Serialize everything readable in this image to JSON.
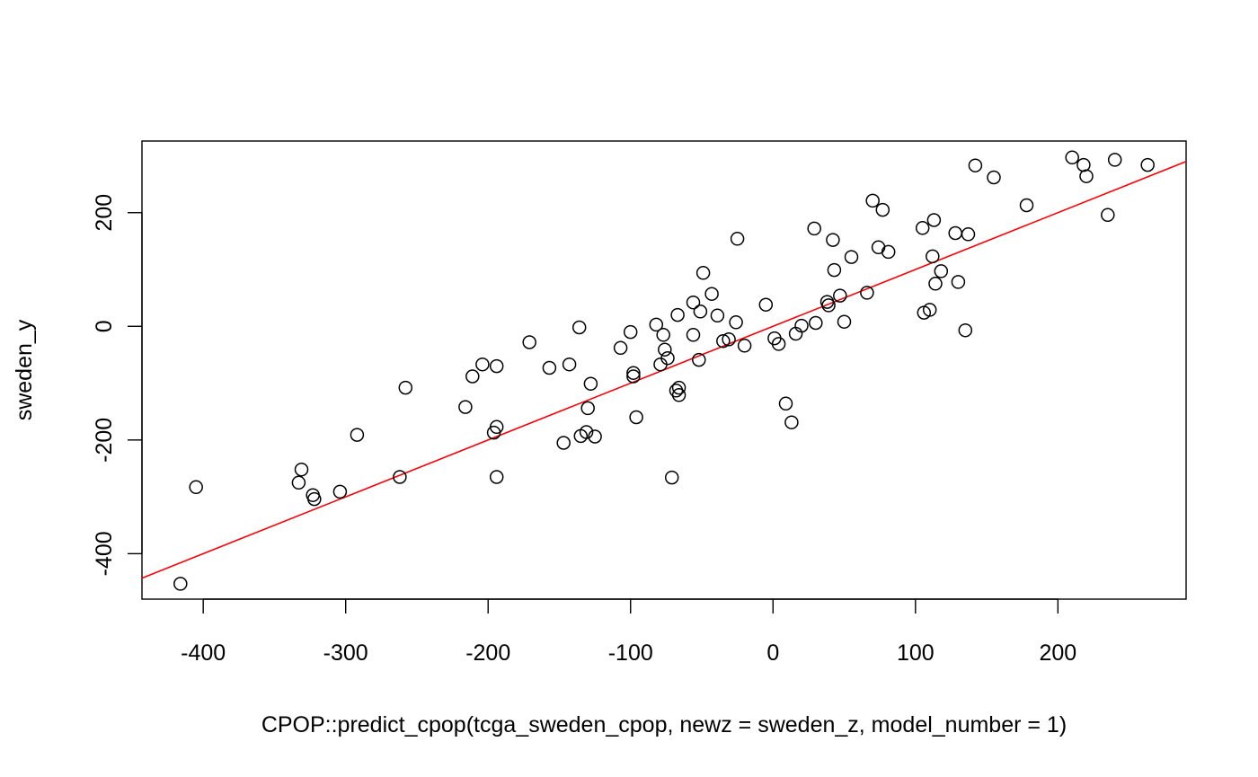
{
  "chart_data": {
    "type": "scatter",
    "xlabel": "CPOP::predict_cpop(tcga_sweden_cpop, newz = sweden_z, model_number = 1)",
    "ylabel": "sweden_y",
    "xlim": [
      -443,
      290
    ],
    "ylim": [
      -480,
      326
    ],
    "x_ticks": [
      -400,
      -300,
      -200,
      -100,
      0,
      100,
      200
    ],
    "y_ticks": [
      -400,
      -200,
      0,
      200
    ],
    "grid": false,
    "legend": "none",
    "point_style": "open-circle",
    "colors": {
      "points": "#000000",
      "reference_line": "#ff0000"
    },
    "reference_line": {
      "slope": 1,
      "intercept": 0
    },
    "points": [
      [
        -416,
        -453
      ],
      [
        -405,
        -283
      ],
      [
        -333,
        -275
      ],
      [
        -331,
        -252
      ],
      [
        -323,
        -297
      ],
      [
        -322,
        -304
      ],
      [
        -304,
        -291
      ],
      [
        -292,
        -191
      ],
      [
        -262,
        -265
      ],
      [
        -258,
        -108
      ],
      [
        -216,
        -142
      ],
      [
        -211,
        -88
      ],
      [
        -204,
        -67
      ],
      [
        -196,
        -187
      ],
      [
        -194,
        -70
      ],
      [
        -194,
        -177
      ],
      [
        -194,
        -265
      ],
      [
        -171,
        -28
      ],
      [
        -157,
        -73
      ],
      [
        -147,
        -205
      ],
      [
        -143,
        -67
      ],
      [
        -136,
        -2
      ],
      [
        -135,
        -193
      ],
      [
        -131,
        -186
      ],
      [
        -130,
        -144
      ],
      [
        -128,
        -101
      ],
      [
        -125,
        -194
      ],
      [
        -107,
        -38
      ],
      [
        -100,
        -10
      ],
      [
        -98,
        -82
      ],
      [
        -98,
        -88
      ],
      [
        -96,
        -160
      ],
      [
        -82,
        3
      ],
      [
        -79,
        -67
      ],
      [
        -77,
        -15
      ],
      [
        -76,
        -41
      ],
      [
        -74,
        -56
      ],
      [
        -71,
        -266
      ],
      [
        -68,
        -113
      ],
      [
        -67,
        20
      ],
      [
        -66,
        -108
      ],
      [
        -66,
        -121
      ],
      [
        -56,
        -15
      ],
      [
        -56,
        42
      ],
      [
        -52,
        -59
      ],
      [
        -51,
        26
      ],
      [
        -49,
        94
      ],
      [
        -43,
        57
      ],
      [
        -39,
        19
      ],
      [
        -35,
        -26
      ],
      [
        -31,
        -23
      ],
      [
        -26,
        7
      ],
      [
        -25,
        154
      ],
      [
        -20,
        -34
      ],
      [
        -5,
        38
      ],
      [
        1,
        -21
      ],
      [
        4,
        -31
      ],
      [
        9,
        -136
      ],
      [
        13,
        -169
      ],
      [
        16,
        -13
      ],
      [
        20,
        1
      ],
      [
        29,
        172
      ],
      [
        30,
        6
      ],
      [
        38,
        43
      ],
      [
        39,
        37
      ],
      [
        42,
        152
      ],
      [
        43,
        99
      ],
      [
        47,
        54
      ],
      [
        50,
        8
      ],
      [
        55,
        122
      ],
      [
        66,
        59
      ],
      [
        70,
        221
      ],
      [
        74,
        139
      ],
      [
        77,
        205
      ],
      [
        81,
        131
      ],
      [
        105,
        173
      ],
      [
        106,
        24
      ],
      [
        110,
        29
      ],
      [
        112,
        123
      ],
      [
        113,
        187
      ],
      [
        114,
        75
      ],
      [
        118,
        97
      ],
      [
        128,
        164
      ],
      [
        130,
        78
      ],
      [
        135,
        -7
      ],
      [
        137,
        162
      ],
      [
        142,
        283
      ],
      [
        155,
        262
      ],
      [
        178,
        213
      ],
      [
        210,
        297
      ],
      [
        218,
        284
      ],
      [
        220,
        264
      ],
      [
        235,
        196
      ],
      [
        240,
        293
      ],
      [
        263,
        284
      ]
    ]
  }
}
